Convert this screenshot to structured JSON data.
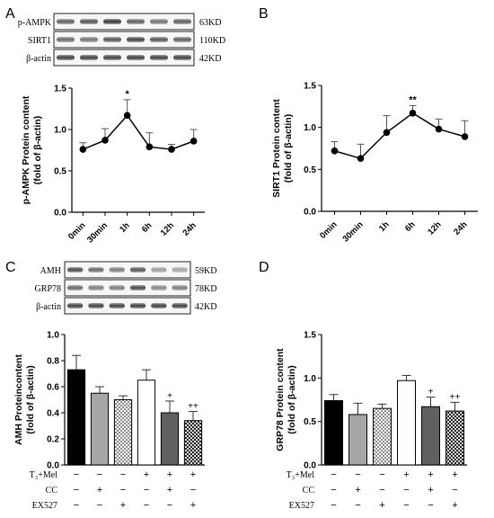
{
  "panels": {
    "A": {
      "letter": "A",
      "blot": {
        "rows": [
          {
            "label": "p-AMPK",
            "size": "63KD"
          },
          {
            "label": "SIRT1",
            "size": "110KD"
          },
          {
            "label": "β-actin",
            "size": "42KD"
          }
        ]
      }
    },
    "B": {
      "letter": "B"
    },
    "C": {
      "letter": "C",
      "blot": {
        "rows": [
          {
            "label": "AMH",
            "size": "59KD"
          },
          {
            "label": "GRP78",
            "size": "78KD"
          },
          {
            "label": "β-actin",
            "size": "42KD"
          }
        ]
      }
    },
    "D": {
      "letter": "D"
    }
  },
  "treatment_table": {
    "rows": [
      {
        "label": "T₃+Mel",
        "signs": [
          "−",
          "−",
          "−",
          "+",
          "+",
          "+"
        ]
      },
      {
        "label": "CC",
        "signs": [
          "−",
          "+",
          "−",
          "−",
          "+",
          "−"
        ]
      },
      {
        "label": "EX527",
        "signs": [
          "−",
          "−",
          "+",
          "−",
          "−",
          "+"
        ]
      }
    ]
  },
  "chart_data": [
    {
      "id": "A",
      "type": "line",
      "categories": [
        "0min",
        "30min",
        "1h",
        "6h",
        "12h",
        "24h"
      ],
      "values": [
        0.76,
        0.87,
        1.17,
        0.79,
        0.76,
        0.86
      ],
      "errors": [
        0.08,
        0.14,
        0.19,
        0.17,
        0.06,
        0.14
      ],
      "annotations": [
        "",
        "",
        "*",
        "",
        "",
        ""
      ],
      "ylabel": "p-AMPK Protein content",
      "ylabel2": "(fold of β-actin)",
      "ylim": [
        0,
        1.5
      ],
      "yticks": [
        "0.0",
        "0.5",
        "1.0",
        "1.5"
      ],
      "grid": false
    },
    {
      "id": "B",
      "type": "line",
      "categories": [
        "0min",
        "30min",
        "1h",
        "6h",
        "12h",
        "24h"
      ],
      "values": [
        0.72,
        0.63,
        0.94,
        1.17,
        0.98,
        0.89
      ],
      "errors": [
        0.11,
        0.17,
        0.2,
        0.09,
        0.12,
        0.19
      ],
      "annotations": [
        "",
        "",
        "",
        "**",
        "",
        ""
      ],
      "ylabel": "SIRT1 Protein content",
      "ylabel2": "(fold of β-actin)",
      "ylim": [
        0,
        1.5
      ],
      "yticks": [
        "0.0",
        "0.5",
        "1.0",
        "1.5"
      ],
      "grid": false
    },
    {
      "id": "C",
      "type": "bar",
      "values": [
        0.73,
        0.55,
        0.5,
        0.65,
        0.4,
        0.34
      ],
      "errors": [
        0.11,
        0.05,
        0.03,
        0.08,
        0.09,
        0.07
      ],
      "annotations": [
        "",
        "",
        "",
        "",
        "+",
        "++"
      ],
      "ylabel": "AMH Proteincontent",
      "ylabel2": "(fold of β-actin)",
      "ylim": [
        0,
        1.0
      ],
      "yticks": [
        "0.0",
        "0.2",
        "0.4",
        "0.6",
        "0.8",
        "1.0"
      ],
      "bar_styles": [
        "black",
        "grey",
        "dots",
        "white",
        "darkgrey",
        "check"
      ],
      "grid": false
    },
    {
      "id": "D",
      "type": "bar",
      "values": [
        0.74,
        0.58,
        0.65,
        0.97,
        0.67,
        0.62
      ],
      "errors": [
        0.07,
        0.13,
        0.05,
        0.06,
        0.11,
        0.1
      ],
      "annotations": [
        "",
        "",
        "",
        "",
        "+",
        "++"
      ],
      "ylabel": "GRP78 Protein content",
      "ylabel2": "(fold of β-actin)",
      "ylim": [
        0,
        1.5
      ],
      "yticks": [
        "0.0",
        "0.5",
        "1.0",
        "1.5"
      ],
      "bar_styles": [
        "black",
        "grey",
        "dots",
        "white",
        "darkgrey",
        "check"
      ],
      "grid": false
    }
  ]
}
